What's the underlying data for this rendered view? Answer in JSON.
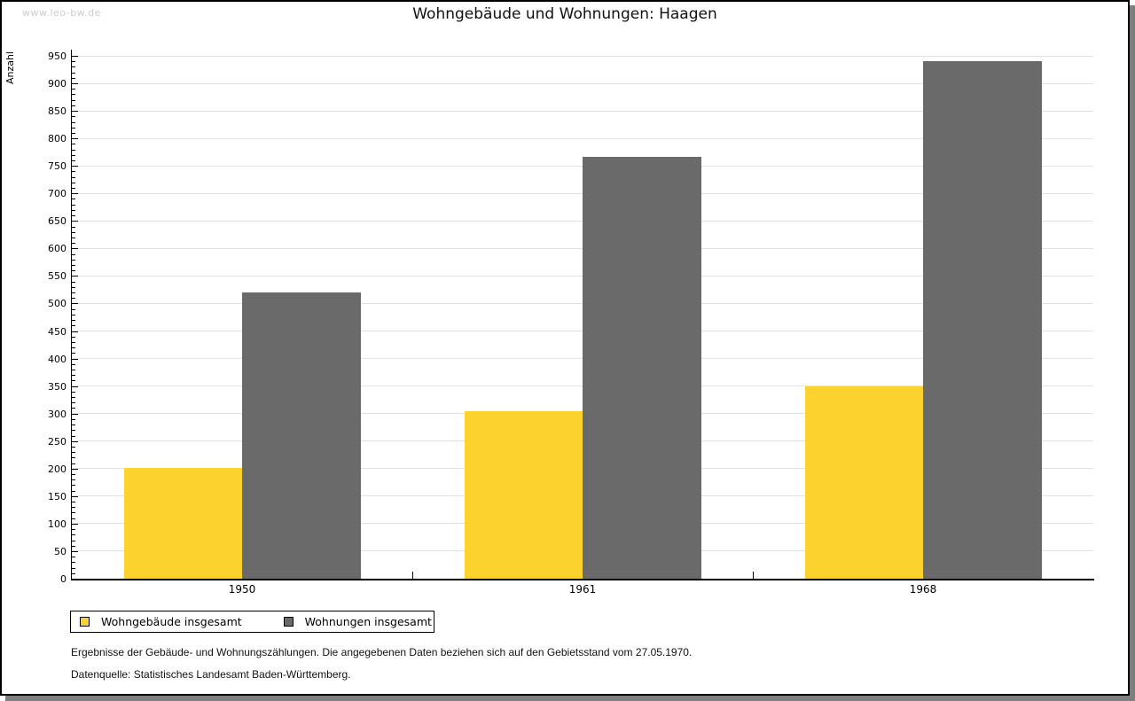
{
  "watermark": "www.leo-bw.de",
  "title": "Wohngebäude und Wohnungen: Haagen",
  "chart_data": {
    "type": "bar",
    "title": "Wohngebäude und Wohnungen: Haagen",
    "xlabel": "",
    "ylabel": "Anzahl",
    "categories": [
      "1950",
      "1961",
      "1968"
    ],
    "series": [
      {
        "name": "Wohngebäude insgesamt",
        "color": "#fcd32e",
        "values": [
          202,
          305,
          350
        ]
      },
      {
        "name": "Wohnungen insgesamt",
        "color": "#6a6a6a",
        "values": [
          520,
          766,
          941
        ]
      }
    ],
    "ylim": [
      0,
      950
    ],
    "y_major_step": 50,
    "y_minor_step": 10,
    "grid": true,
    "gridline_color": "#e2e2e2",
    "legend_position": "bottom-left"
  },
  "footer": {
    "line1": "Ergebnisse der Gebäude- und Wohnungszählungen. Die angegebenen Daten beziehen sich auf den Gebietsstand vom 27.05.1970.",
    "line2": "Datenquelle: Statistisches Landesamt Baden-Württemberg."
  }
}
